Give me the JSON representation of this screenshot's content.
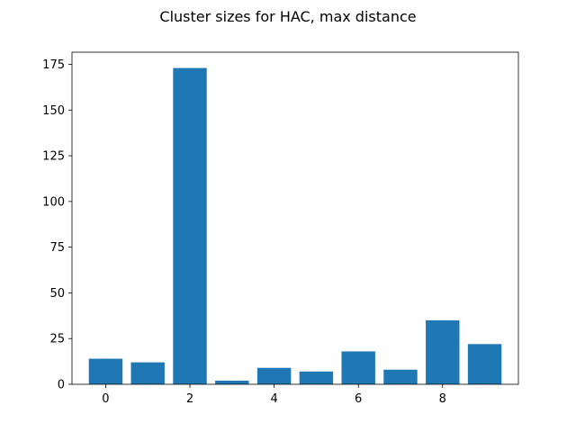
{
  "chart_data": {
    "type": "bar",
    "title": "Cluster sizes for HAC, max distance",
    "xlabel": "",
    "ylabel": "",
    "categories": [
      0,
      1,
      2,
      3,
      4,
      5,
      6,
      7,
      8,
      9
    ],
    "values": [
      14,
      12,
      173,
      2,
      9,
      7,
      18,
      8,
      35,
      22
    ],
    "xlim": [
      -0.8,
      9.8
    ],
    "ylim": [
      0,
      181.65
    ],
    "x_ticks": [
      0,
      2,
      4,
      6,
      8
    ],
    "y_ticks": [
      0,
      25,
      50,
      75,
      100,
      125,
      150,
      175
    ],
    "bar_color": "#1f77b4",
    "grid": false,
    "legend": "none"
  }
}
